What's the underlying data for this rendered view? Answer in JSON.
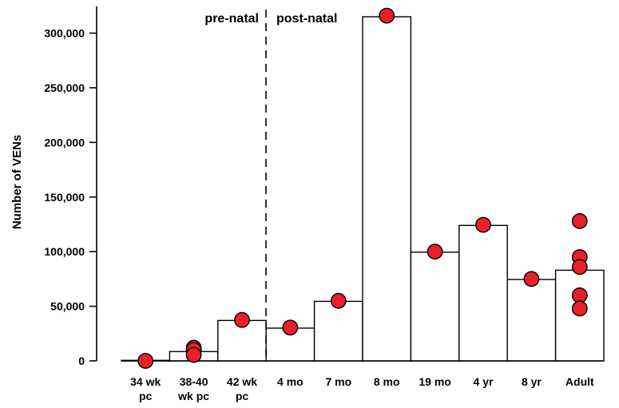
{
  "chart_data": {
    "type": "bar",
    "ylabel": "Number of VENs",
    "xlabel": "",
    "ylim": [
      0,
      330000
    ],
    "yticks": [
      0,
      50000,
      100000,
      150000,
      200000,
      250000,
      300000
    ],
    "ytick_labels": [
      "0",
      "50,000",
      "100,000",
      "150,000",
      "200,000",
      "250,000",
      "300,000"
    ],
    "grid": false,
    "categories": [
      [
        "34 wk",
        "pc"
      ],
      [
        "38-40",
        "wk pc"
      ],
      [
        "42 wk",
        "pc"
      ],
      [
        "4 mo"
      ],
      [
        "7 mo"
      ],
      [
        "8 mo"
      ],
      [
        "19 mo"
      ],
      [
        "4 yr"
      ],
      [
        "8 yr"
      ],
      [
        "Adult"
      ]
    ],
    "series": [
      {
        "kind": "bar",
        "values": [
          500,
          8500,
          37000,
          30000,
          54500,
          315000,
          99500,
          124000,
          74500,
          83000
        ],
        "fill": "#ffffff",
        "stroke": "#000000"
      },
      {
        "kind": "points",
        "color": "#e8202a",
        "points": [
          [
            0,
            0
          ],
          [
            1,
            12000
          ],
          [
            1,
            10000
          ],
          [
            1,
            5500
          ],
          [
            2,
            37500
          ],
          [
            3,
            30500
          ],
          [
            4,
            55000
          ],
          [
            5,
            316000
          ],
          [
            6,
            100000
          ],
          [
            7,
            124500
          ],
          [
            8,
            75000
          ],
          [
            9,
            128000
          ],
          [
            9,
            95000
          ],
          [
            9,
            86000
          ],
          [
            9,
            60000
          ],
          [
            9,
            48000
          ]
        ]
      }
    ],
    "divider": {
      "after_category_index": 2,
      "left_label": "pre-natal",
      "right_label": "post-natal"
    }
  }
}
